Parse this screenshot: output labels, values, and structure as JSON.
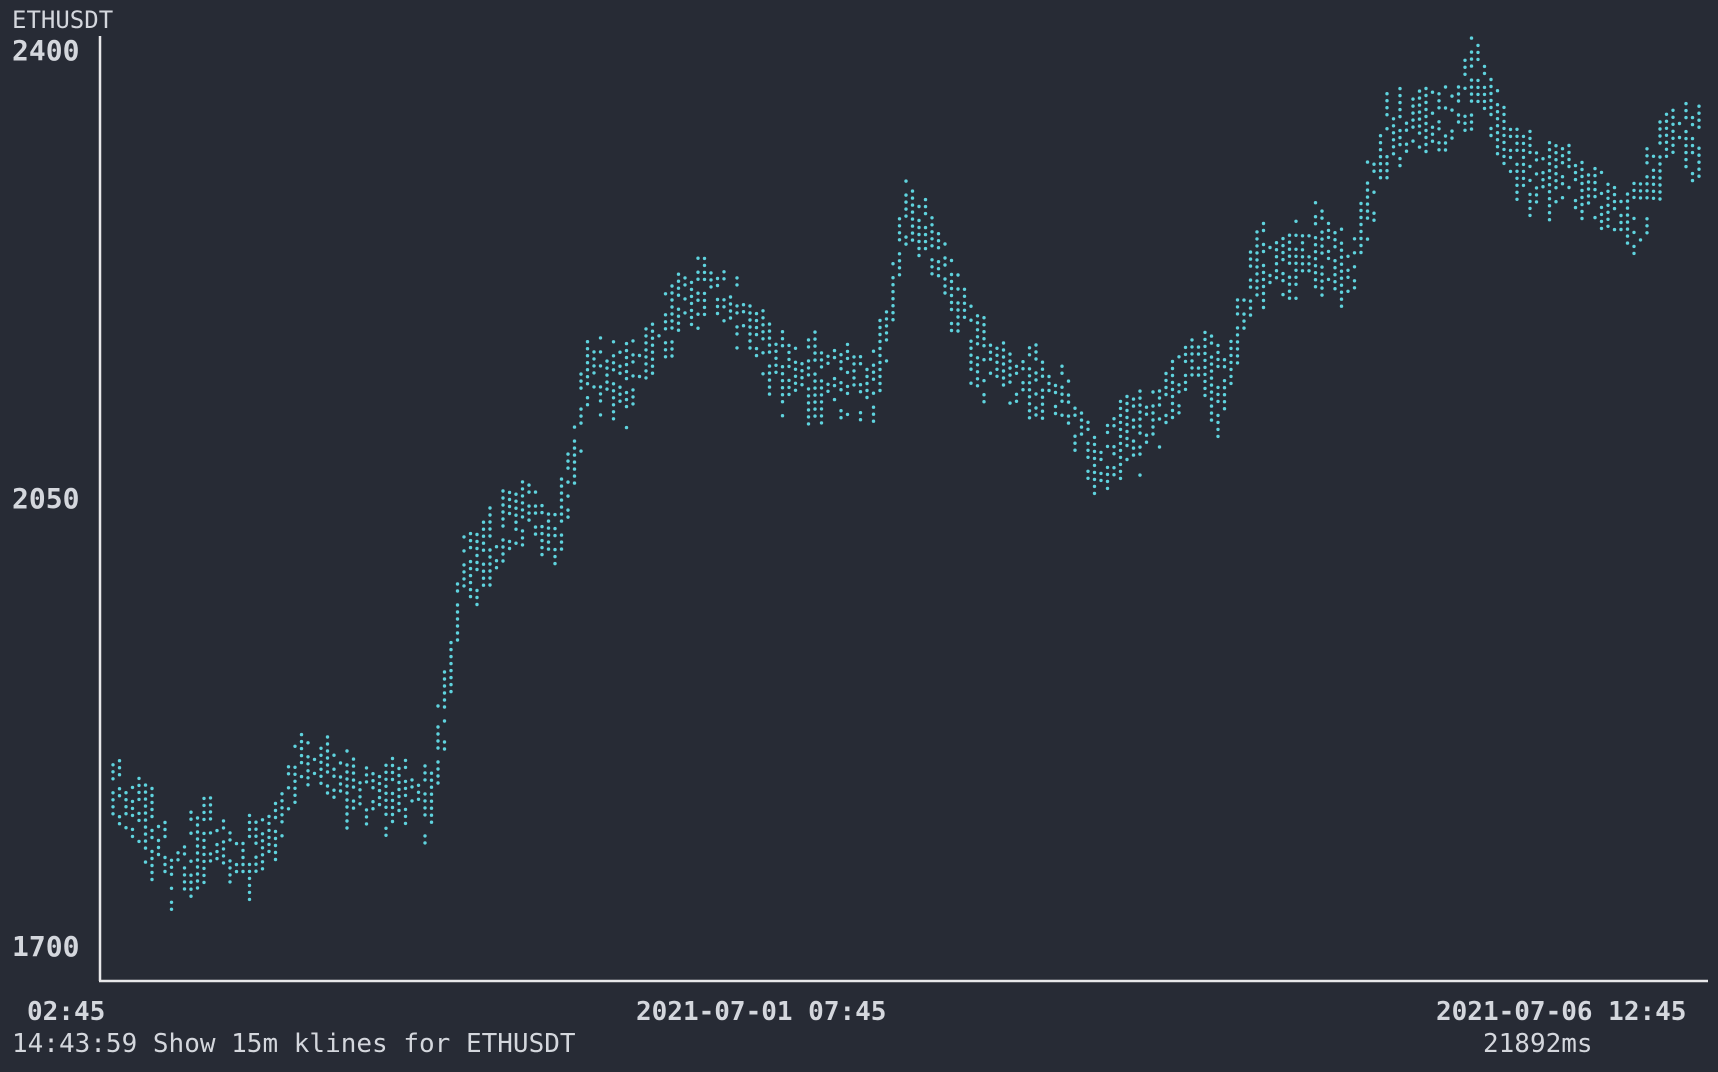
{
  "window": {
    "symbol_label": "ETHUSDT"
  },
  "status": {
    "time": "14:43:59",
    "message": "Show 15m klines for ETHUSDT",
    "latency": "21892ms"
  },
  "colors": {
    "background": "#272b35",
    "axis": "#e8e8ea",
    "series": "#5fd3de",
    "text": "#d4d7dd"
  },
  "chart_data": {
    "type": "scatter",
    "style": "braille-dot price plot (15m klines)",
    "title": "ETHUSDT",
    "ylim": [
      1700,
      2400
    ],
    "y_ticks": [
      "2400",
      "2050",
      "1700"
    ],
    "x_ticks": [
      "02:45",
      "2021-07-01 07:45",
      "2021-07-06 12:45"
    ],
    "grid": false,
    "legend": "none",
    "series": [
      {
        "x": [
          0,
          10,
          20,
          30,
          40,
          50,
          60,
          70,
          80,
          90,
          100,
          110,
          120,
          130,
          140,
          150,
          160,
          170,
          180,
          190,
          200,
          210,
          220,
          230,
          240,
          250,
          260,
          270,
          280,
          290,
          300,
          310,
          320,
          330,
          340,
          350,
          360,
          370,
          380,
          390,
          400,
          410,
          420,
          430,
          440,
          450,
          460,
          470,
          480,
          490,
          500
        ],
        "values": [
          1820,
          1800,
          1760,
          1785,
          1765,
          1790,
          1850,
          1835,
          1815,
          1825,
          1810,
          2000,
          2010,
          2050,
          2020,
          2150,
          2145,
          2165,
          2205,
          2215,
          2185,
          2155,
          2140,
          2150,
          2135,
          2285,
          2240,
          2180,
          2150,
          2140,
          2130,
          2070,
          2110,
          2120,
          2160,
          2140,
          2230,
          2240,
          2245,
          2232,
          2325,
          2350,
          2342,
          2385,
          2322,
          2305,
          2300,
          2282,
          2265,
          2340,
          2332
        ]
      }
    ]
  }
}
